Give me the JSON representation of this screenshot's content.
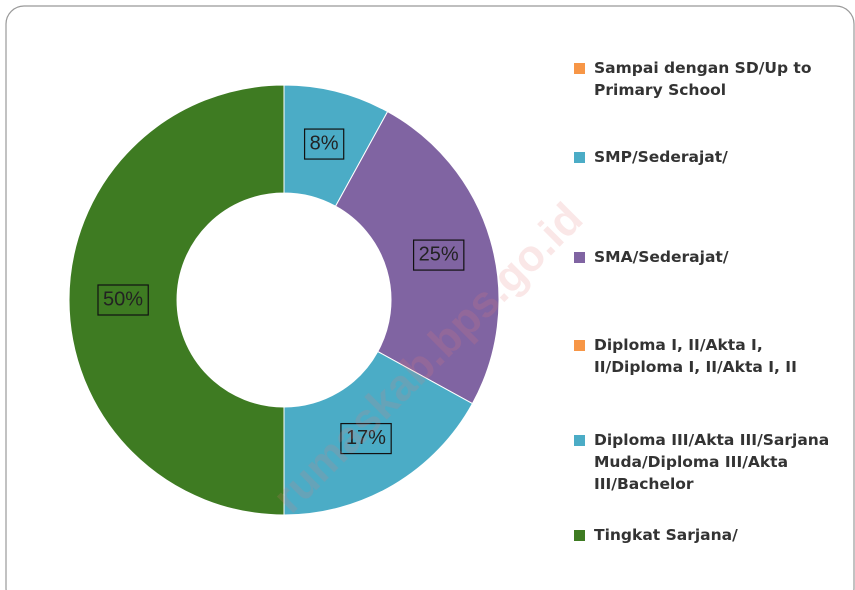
{
  "chart_data": {
    "type": "pie",
    "categories": [
      "Sampai dengan SD/Up to Primary School",
      "SMP/Sederajat/",
      "SMA/Sederajat/",
      "Diploma I, II/Akta I, II/Diploma I, II/Akta I, II",
      "Diploma III/Akta III/Sarjana Muda/Diploma III/Akta III/Bachelor",
      "Tingkat Sarjana/"
    ],
    "values": [
      0,
      8,
      25,
      0,
      17,
      50
    ],
    "value_labels": [
      null,
      "8%",
      "25%",
      null,
      "17%",
      "50%"
    ],
    "colors": [
      "#f79646",
      "#4bacc6",
      "#8064a2",
      "#f79646",
      "#4bacc6",
      "#3e7b22"
    ],
    "donut": true,
    "legend": "right",
    "watermark": "rumaskab.bps.go.id"
  }
}
